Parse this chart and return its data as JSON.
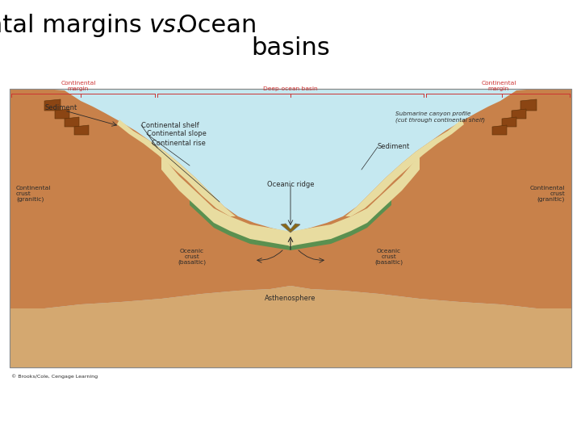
{
  "title": "Continental margins ",
  "title_vs": "vs.",
  "title_rest": " Ocean\nbasins",
  "title_fontsize": 22,
  "bg_color": "#ffffff",
  "water_color": "#c5e8f0",
  "continental_crust_color": "#c8814a",
  "asthenosphere_color": "#d4a870",
  "sediment_color": "#e8dca0",
  "oceanic_crust_color": "#5a9050",
  "label_red": "#cc3333",
  "label_dark": "#2a2a2a",
  "copyright": "© Brooks/Cole, Cengage Learning",
  "diagram_border": "#888888",
  "cliff_dark": "#8b4513"
}
